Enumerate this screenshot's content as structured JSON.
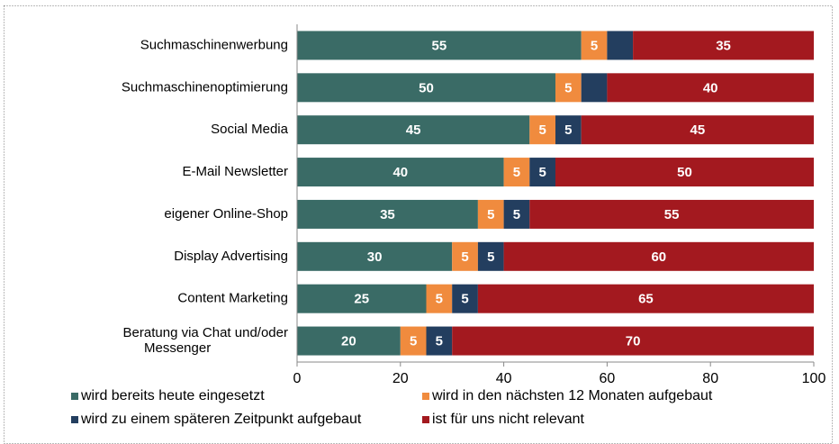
{
  "chart_data": {
    "type": "stacked_bar_horizontal",
    "categories": [
      "Suchmaschinenwerbung",
      "Suchmaschinenoptimierung",
      "Social Media",
      "E-Mail Newsletter",
      "eigener Online-Shop",
      "Display Advertising",
      "Content Marketing",
      "Beratung via Chat und/oder Messenger"
    ],
    "series": [
      {
        "name": "wird bereits heute eingesetzt",
        "color": "#3a6b66",
        "values": [
          55,
          50,
          45,
          40,
          35,
          30,
          25,
          20
        ]
      },
      {
        "name": "wird in den nächsten 12 Monaten aufgebaut",
        "color": "#f08b3e",
        "values": [
          5,
          5,
          5,
          5,
          5,
          5,
          5,
          5
        ]
      },
      {
        "name": "wird zu einem späteren Zeitpunkt aufgebaut",
        "color": "#233e5f",
        "values": [
          5,
          5,
          5,
          5,
          5,
          5,
          5,
          5
        ],
        "value_labels": [
          null,
          null,
          "5",
          "5",
          "5",
          "5",
          "5",
          "5"
        ]
      },
      {
        "name": "ist für uns nicht relevant",
        "color": "#a3191f",
        "values": [
          35,
          40,
          45,
          50,
          55,
          60,
          65,
          70
        ]
      }
    ],
    "xlim": [
      0,
      100
    ],
    "xticks": [
      0,
      20,
      40,
      60,
      80,
      100
    ],
    "legend": "bottom"
  }
}
